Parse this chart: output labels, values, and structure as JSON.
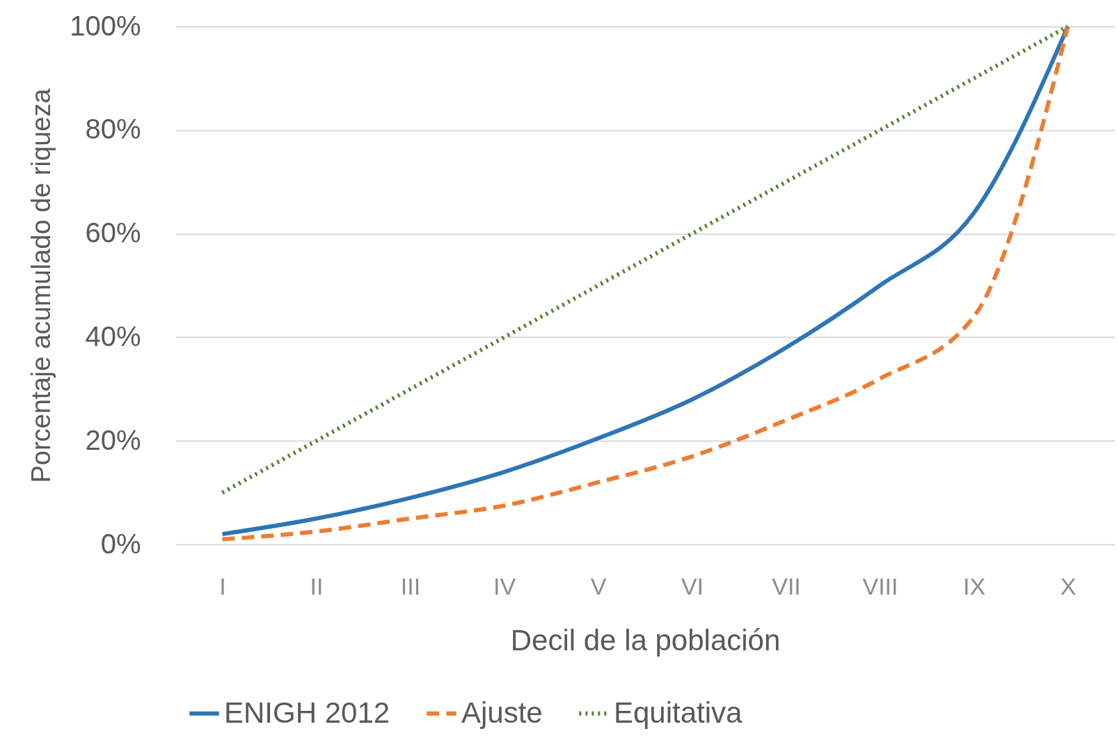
{
  "chart_data": {
    "type": "line",
    "xlabel": "Decil de la población",
    "ylabel": "Porcentaje acumulado de riqueza",
    "categories": [
      "I",
      "II",
      "III",
      "IV",
      "V",
      "VI",
      "VII",
      "VIII",
      "IX",
      "X"
    ],
    "series": [
      {
        "name": "ENIGH 2012",
        "color": "#2e75b6",
        "line_style": "solid",
        "values": [
          2,
          5,
          9,
          14,
          20.5,
          28,
          38,
          50,
          64,
          100
        ]
      },
      {
        "name": "Ajuste",
        "color": "#ed7d31",
        "line_style": "dashed",
        "values": [
          1,
          2.5,
          5,
          7.5,
          12,
          17,
          24,
          32,
          44,
          100
        ]
      },
      {
        "name": "Equitativa",
        "color": "#548235",
        "line_style": "dotted",
        "values": [
          10,
          20,
          30,
          40,
          50,
          60,
          70,
          80,
          90,
          100
        ]
      }
    ],
    "ylim": [
      0,
      100
    ],
    "yticks": [
      {
        "value": 0,
        "label": "0%"
      },
      {
        "value": 20,
        "label": "20%"
      },
      {
        "value": 40,
        "label": "40%"
      },
      {
        "value": 60,
        "label": "60%"
      },
      {
        "value": 80,
        "label": "80%"
      },
      {
        "value": 100,
        "label": "100%"
      }
    ],
    "grid": "y",
    "legend": "bottom"
  }
}
